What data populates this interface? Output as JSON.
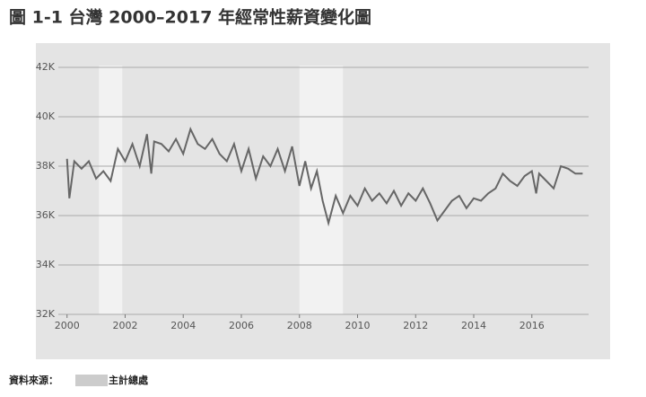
{
  "chart_data": {
    "type": "line",
    "title": "圖 1-1  台灣 2000–2017 年經常性薪資變化圖",
    "source_prefix": "資料來源：",
    "source_suffix": "主計總處",
    "x": [
      2000.0,
      2000.08,
      2000.25,
      2000.5,
      2000.75,
      2001.0,
      2001.25,
      2001.5,
      2001.75,
      2002.0,
      2002.25,
      2002.5,
      2002.75,
      2002.9,
      2003.0,
      2003.25,
      2003.5,
      2003.75,
      2004.0,
      2004.25,
      2004.5,
      2004.75,
      2005.0,
      2005.25,
      2005.5,
      2005.75,
      2006.0,
      2006.25,
      2006.5,
      2006.75,
      2007.0,
      2007.25,
      2007.5,
      2007.75,
      2008.0,
      2008.2,
      2008.4,
      2008.6,
      2008.8,
      2009.0,
      2009.25,
      2009.5,
      2009.75,
      2010.0,
      2010.25,
      2010.5,
      2010.75,
      2011.0,
      2011.25,
      2011.5,
      2011.75,
      2012.0,
      2012.25,
      2012.5,
      2012.75,
      2013.0,
      2013.25,
      2013.5,
      2013.75,
      2014.0,
      2014.25,
      2014.5,
      2014.75,
      2015.0,
      2015.25,
      2015.5,
      2015.75,
      2016.0,
      2016.15,
      2016.25,
      2016.5,
      2016.75,
      2017.0,
      2017.25,
      2017.5,
      2017.75
    ],
    "series": [
      {
        "color": "#666666",
        "values": [
          38300,
          36700,
          38200,
          37900,
          38200,
          37500,
          37800,
          37400,
          38700,
          38200,
          38900,
          38000,
          39300,
          37700,
          39000,
          38900,
          38600,
          39100,
          38500,
          39500,
          38900,
          38700,
          39100,
          38500,
          38200,
          38900,
          37800,
          38700,
          37500,
          38400,
          38000,
          38700,
          37800,
          38800,
          37200,
          38200,
          37100,
          37800,
          36600,
          35700,
          36800,
          36100,
          36800,
          36400,
          37100,
          36600,
          36900,
          36500,
          37000,
          36400,
          36900,
          36600,
          37100,
          36500,
          35800,
          36200,
          36600,
          36800,
          36300,
          36700,
          36600,
          36900,
          37100,
          37700,
          37400,
          37200,
          37600,
          37800,
          36900,
          37700,
          37400,
          37100,
          38000,
          37900,
          37700,
          37700
        ]
      }
    ],
    "shaded_ranges": [
      [
        2001.1,
        2001.9
      ],
      [
        2008.0,
        2009.5
      ]
    ],
    "xlim": [
      1999.7,
      2018.2
    ],
    "xticks": [
      2000,
      2002,
      2004,
      2006,
      2008,
      2010,
      2012,
      2014,
      2016
    ],
    "ylim": [
      32000,
      42000
    ],
    "yticks": [
      {
        "value": 32000,
        "label": "32K"
      },
      {
        "value": 34000,
        "label": "34K"
      },
      {
        "value": 36000,
        "label": "36K"
      },
      {
        "value": 38000,
        "label": "38K"
      },
      {
        "value": 40000,
        "label": "40K"
      },
      {
        "value": 42000,
        "label": "42K"
      }
    ],
    "grid": true
  }
}
